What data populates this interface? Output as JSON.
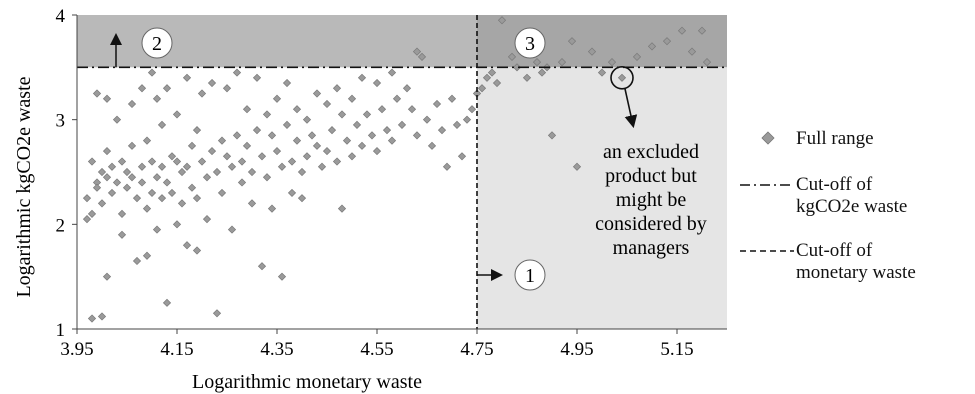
{
  "chart_data": {
    "type": "scatter",
    "xlabel": "Logarithmic monetary waste",
    "ylabel": "Logarithmic kgCO2e waste",
    "xlim": [
      3.95,
      5.25
    ],
    "ylim": [
      1,
      4
    ],
    "xticks": [
      "3.95",
      "4.15",
      "4.35",
      "4.55",
      "4.75",
      "4.95",
      "5.15"
    ],
    "yticks": [
      "1",
      "2",
      "3",
      "4"
    ],
    "grid": false,
    "legend_position": "right",
    "series": [
      {
        "name": "Full range",
        "marker": "diamond",
        "color": "#9a9a9a",
        "points": [
          [
            3.97,
            2.05
          ],
          [
            3.97,
            2.25
          ],
          [
            3.98,
            2.6
          ],
          [
            3.98,
            2.1
          ],
          [
            3.98,
            1.1
          ],
          [
            3.99,
            3.25
          ],
          [
            3.99,
            2.4
          ],
          [
            3.99,
            2.35
          ],
          [
            4.0,
            2.5
          ],
          [
            4.0,
            2.2
          ],
          [
            4.0,
            1.12
          ],
          [
            4.01,
            3.2
          ],
          [
            4.01,
            2.7
          ],
          [
            4.01,
            2.45
          ],
          [
            4.01,
            1.5
          ],
          [
            4.02,
            2.55
          ],
          [
            4.02,
            2.3
          ],
          [
            4.03,
            3.0
          ],
          [
            4.03,
            2.4
          ],
          [
            4.04,
            2.6
          ],
          [
            4.04,
            2.1
          ],
          [
            4.04,
            1.9
          ],
          [
            4.05,
            2.5
          ],
          [
            4.05,
            2.35
          ],
          [
            4.06,
            3.15
          ],
          [
            4.06,
            2.75
          ],
          [
            4.06,
            2.45
          ],
          [
            4.07,
            2.25
          ],
          [
            4.07,
            1.65
          ],
          [
            4.08,
            3.3
          ],
          [
            4.08,
            2.55
          ],
          [
            4.08,
            2.4
          ],
          [
            4.09,
            2.8
          ],
          [
            4.09,
            2.15
          ],
          [
            4.09,
            1.7
          ],
          [
            4.1,
            3.45
          ],
          [
            4.1,
            2.6
          ],
          [
            4.1,
            2.3
          ],
          [
            4.11,
            3.2
          ],
          [
            4.11,
            2.45
          ],
          [
            4.11,
            1.95
          ],
          [
            4.12,
            2.95
          ],
          [
            4.12,
            2.55
          ],
          [
            4.12,
            2.25
          ],
          [
            4.13,
            3.3
          ],
          [
            4.13,
            2.4
          ],
          [
            4.13,
            1.25
          ],
          [
            4.14,
            2.65
          ],
          [
            4.14,
            2.3
          ],
          [
            4.15,
            3.05
          ],
          [
            4.15,
            2.6
          ],
          [
            4.15,
            2.0
          ],
          [
            4.16,
            2.5
          ],
          [
            4.16,
            2.2
          ],
          [
            4.17,
            3.4
          ],
          [
            4.17,
            2.55
          ],
          [
            4.17,
            1.8
          ],
          [
            4.18,
            2.75
          ],
          [
            4.18,
            2.35
          ],
          [
            4.19,
            2.9
          ],
          [
            4.19,
            2.25
          ],
          [
            4.19,
            1.75
          ],
          [
            4.2,
            3.25
          ],
          [
            4.2,
            2.6
          ],
          [
            4.21,
            2.45
          ],
          [
            4.21,
            2.05
          ],
          [
            4.22,
            3.35
          ],
          [
            4.22,
            2.7
          ],
          [
            4.23,
            2.5
          ],
          [
            4.23,
            1.15
          ],
          [
            4.24,
            2.8
          ],
          [
            4.24,
            2.3
          ],
          [
            4.25,
            3.3
          ],
          [
            4.25,
            2.65
          ],
          [
            4.26,
            2.55
          ],
          [
            4.26,
            1.95
          ],
          [
            4.27,
            3.45
          ],
          [
            4.27,
            2.85
          ],
          [
            4.28,
            2.6
          ],
          [
            4.28,
            2.4
          ],
          [
            4.29,
            3.1
          ],
          [
            4.29,
            2.75
          ],
          [
            4.3,
            2.5
          ],
          [
            4.3,
            2.2
          ],
          [
            4.31,
            3.4
          ],
          [
            4.31,
            2.9
          ],
          [
            4.32,
            2.65
          ],
          [
            4.32,
            1.6
          ],
          [
            4.33,
            3.05
          ],
          [
            4.33,
            2.45
          ],
          [
            4.34,
            2.85
          ],
          [
            4.34,
            2.15
          ],
          [
            4.35,
            3.2
          ],
          [
            4.35,
            2.7
          ],
          [
            4.36,
            2.55
          ],
          [
            4.36,
            1.5
          ],
          [
            4.37,
            3.35
          ],
          [
            4.37,
            2.95
          ],
          [
            4.38,
            2.6
          ],
          [
            4.38,
            2.3
          ],
          [
            4.39,
            3.1
          ],
          [
            4.39,
            2.8
          ],
          [
            4.4,
            2.5
          ],
          [
            4.4,
            2.25
          ],
          [
            4.41,
            3.0
          ],
          [
            4.41,
            2.65
          ],
          [
            4.42,
            2.85
          ],
          [
            4.43,
            3.25
          ],
          [
            4.43,
            2.75
          ],
          [
            4.44,
            2.55
          ],
          [
            4.45,
            3.15
          ],
          [
            4.45,
            2.7
          ],
          [
            4.46,
            2.9
          ],
          [
            4.47,
            3.3
          ],
          [
            4.47,
            2.6
          ],
          [
            4.48,
            3.05
          ],
          [
            4.48,
            2.15
          ],
          [
            4.49,
            2.8
          ],
          [
            4.5,
            3.2
          ],
          [
            4.5,
            2.65
          ],
          [
            4.51,
            2.95
          ],
          [
            4.52,
            3.4
          ],
          [
            4.52,
            2.75
          ],
          [
            4.53,
            3.05
          ],
          [
            4.54,
            2.85
          ],
          [
            4.55,
            3.35
          ],
          [
            4.55,
            2.7
          ],
          [
            4.56,
            3.1
          ],
          [
            4.57,
            2.9
          ],
          [
            4.58,
            3.45
          ],
          [
            4.58,
            2.8
          ],
          [
            4.59,
            3.2
          ],
          [
            4.6,
            2.95
          ],
          [
            4.61,
            3.3
          ],
          [
            4.62,
            3.1
          ],
          [
            4.63,
            3.65
          ],
          [
            4.63,
            2.85
          ],
          [
            4.64,
            3.6
          ],
          [
            4.65,
            3.0
          ],
          [
            4.66,
            2.75
          ],
          [
            4.67,
            3.15
          ],
          [
            4.68,
            2.9
          ],
          [
            4.69,
            2.55
          ],
          [
            4.7,
            3.2
          ],
          [
            4.71,
            2.95
          ],
          [
            4.72,
            2.65
          ],
          [
            4.73,
            3.0
          ],
          [
            4.74,
            3.1
          ],
          [
            4.75,
            3.25
          ],
          [
            4.76,
            3.3
          ],
          [
            4.77,
            3.4
          ],
          [
            4.78,
            3.45
          ],
          [
            4.79,
            3.35
          ],
          [
            4.8,
            3.95
          ],
          [
            4.82,
            3.6
          ],
          [
            4.83,
            3.5
          ],
          [
            4.85,
            3.4
          ],
          [
            4.86,
            3.65
          ],
          [
            4.87,
            3.55
          ],
          [
            4.88,
            3.45
          ],
          [
            4.89,
            3.5
          ],
          [
            4.9,
            2.85
          ],
          [
            4.92,
            3.55
          ],
          [
            4.94,
            3.75
          ],
          [
            4.95,
            2.55
          ],
          [
            4.98,
            3.65
          ],
          [
            5.0,
            3.45
          ],
          [
            5.02,
            3.55
          ],
          [
            5.04,
            3.4
          ],
          [
            5.07,
            3.6
          ],
          [
            5.1,
            3.7
          ],
          [
            5.13,
            3.75
          ],
          [
            5.16,
            3.85
          ],
          [
            5.18,
            3.65
          ],
          [
            5.2,
            3.85
          ],
          [
            5.21,
            3.55
          ]
        ]
      }
    ],
    "cutoffs": {
      "kgco2e": {
        "name": "Cut-off of\nkgCO2e waste",
        "y": 3.5,
        "style": "dash-dot"
      },
      "monetary": {
        "name": "Cut-off of\nmonetary waste",
        "x": 4.75,
        "style": "dashed"
      }
    },
    "regions": [
      {
        "label": "2",
        "x": [
          3.95,
          4.75
        ],
        "y": [
          3.5,
          4
        ],
        "color": "#b9b9b9"
      },
      {
        "label": "3",
        "x": [
          4.75,
          5.25
        ],
        "y": [
          3.5,
          4
        ],
        "color": "#a6a6a6"
      },
      {
        "label": "1",
        "x": [
          4.75,
          5.25
        ],
        "y": [
          1,
          3.5
        ],
        "color": "#e5e5e5"
      }
    ],
    "highlight": {
      "x": 5.04,
      "y": 3.4
    },
    "annotation": "an excluded\nproduct but\nmight be\nconsidered by\nmanagers"
  }
}
